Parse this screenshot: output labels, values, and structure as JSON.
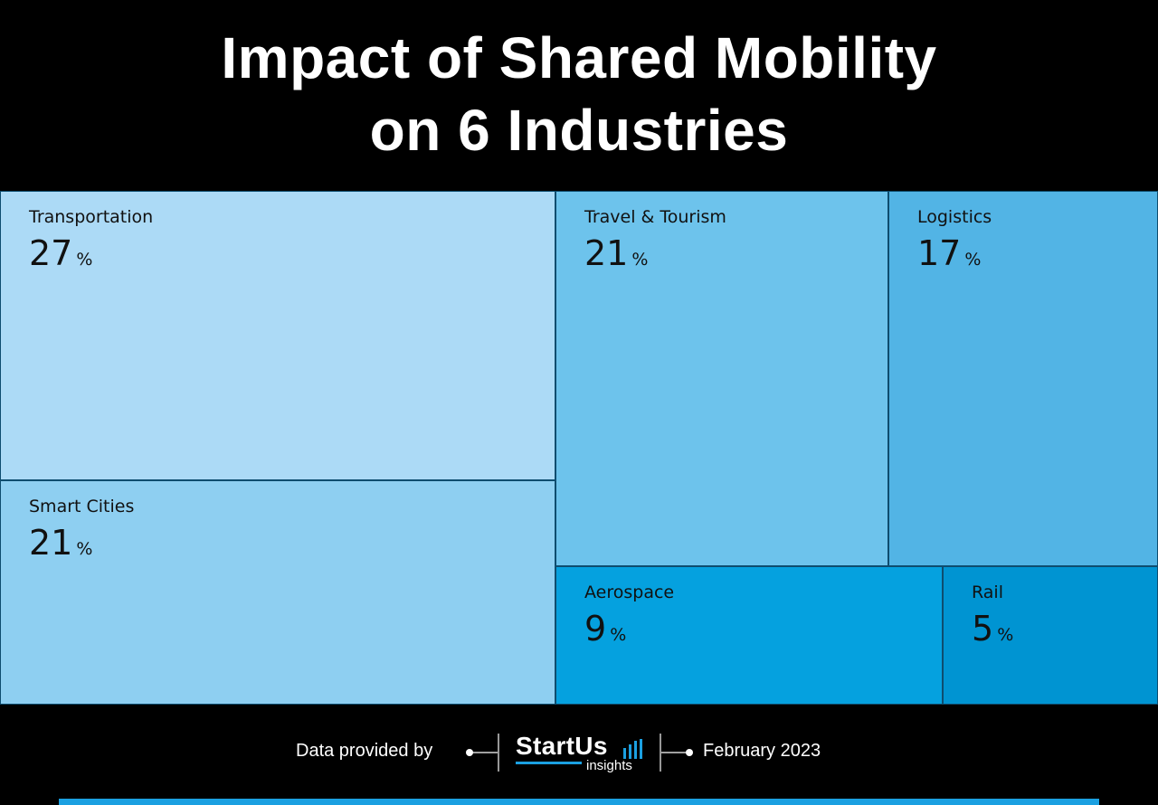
{
  "title_line1": "Impact of Shared Mobility",
  "title_line2": "on 6 Industries",
  "chart_data": {
    "type": "treemap",
    "title": "Impact of Shared Mobility on 6 Industries",
    "unit": "%",
    "items": [
      {
        "name": "Transportation",
        "value": 27,
        "color": "#acdaf6"
      },
      {
        "name": "Smart Cities",
        "value": 21,
        "color": "#8ecff1"
      },
      {
        "name": "Travel & Tourism",
        "value": 21,
        "color": "#6dc3ec"
      },
      {
        "name": "Logistics",
        "value": 17,
        "color": "#52b4e5"
      },
      {
        "name": "Aerospace",
        "value": 9,
        "color": "#05a1df"
      },
      {
        "name": "Rail",
        "value": 5,
        "color": "#0094d2"
      }
    ]
  },
  "footer": {
    "provided_by": "Data provided by",
    "brand": "StartUs",
    "brand_sub": "insights",
    "date": "February 2023",
    "accent_color": "#1ba0e1"
  }
}
